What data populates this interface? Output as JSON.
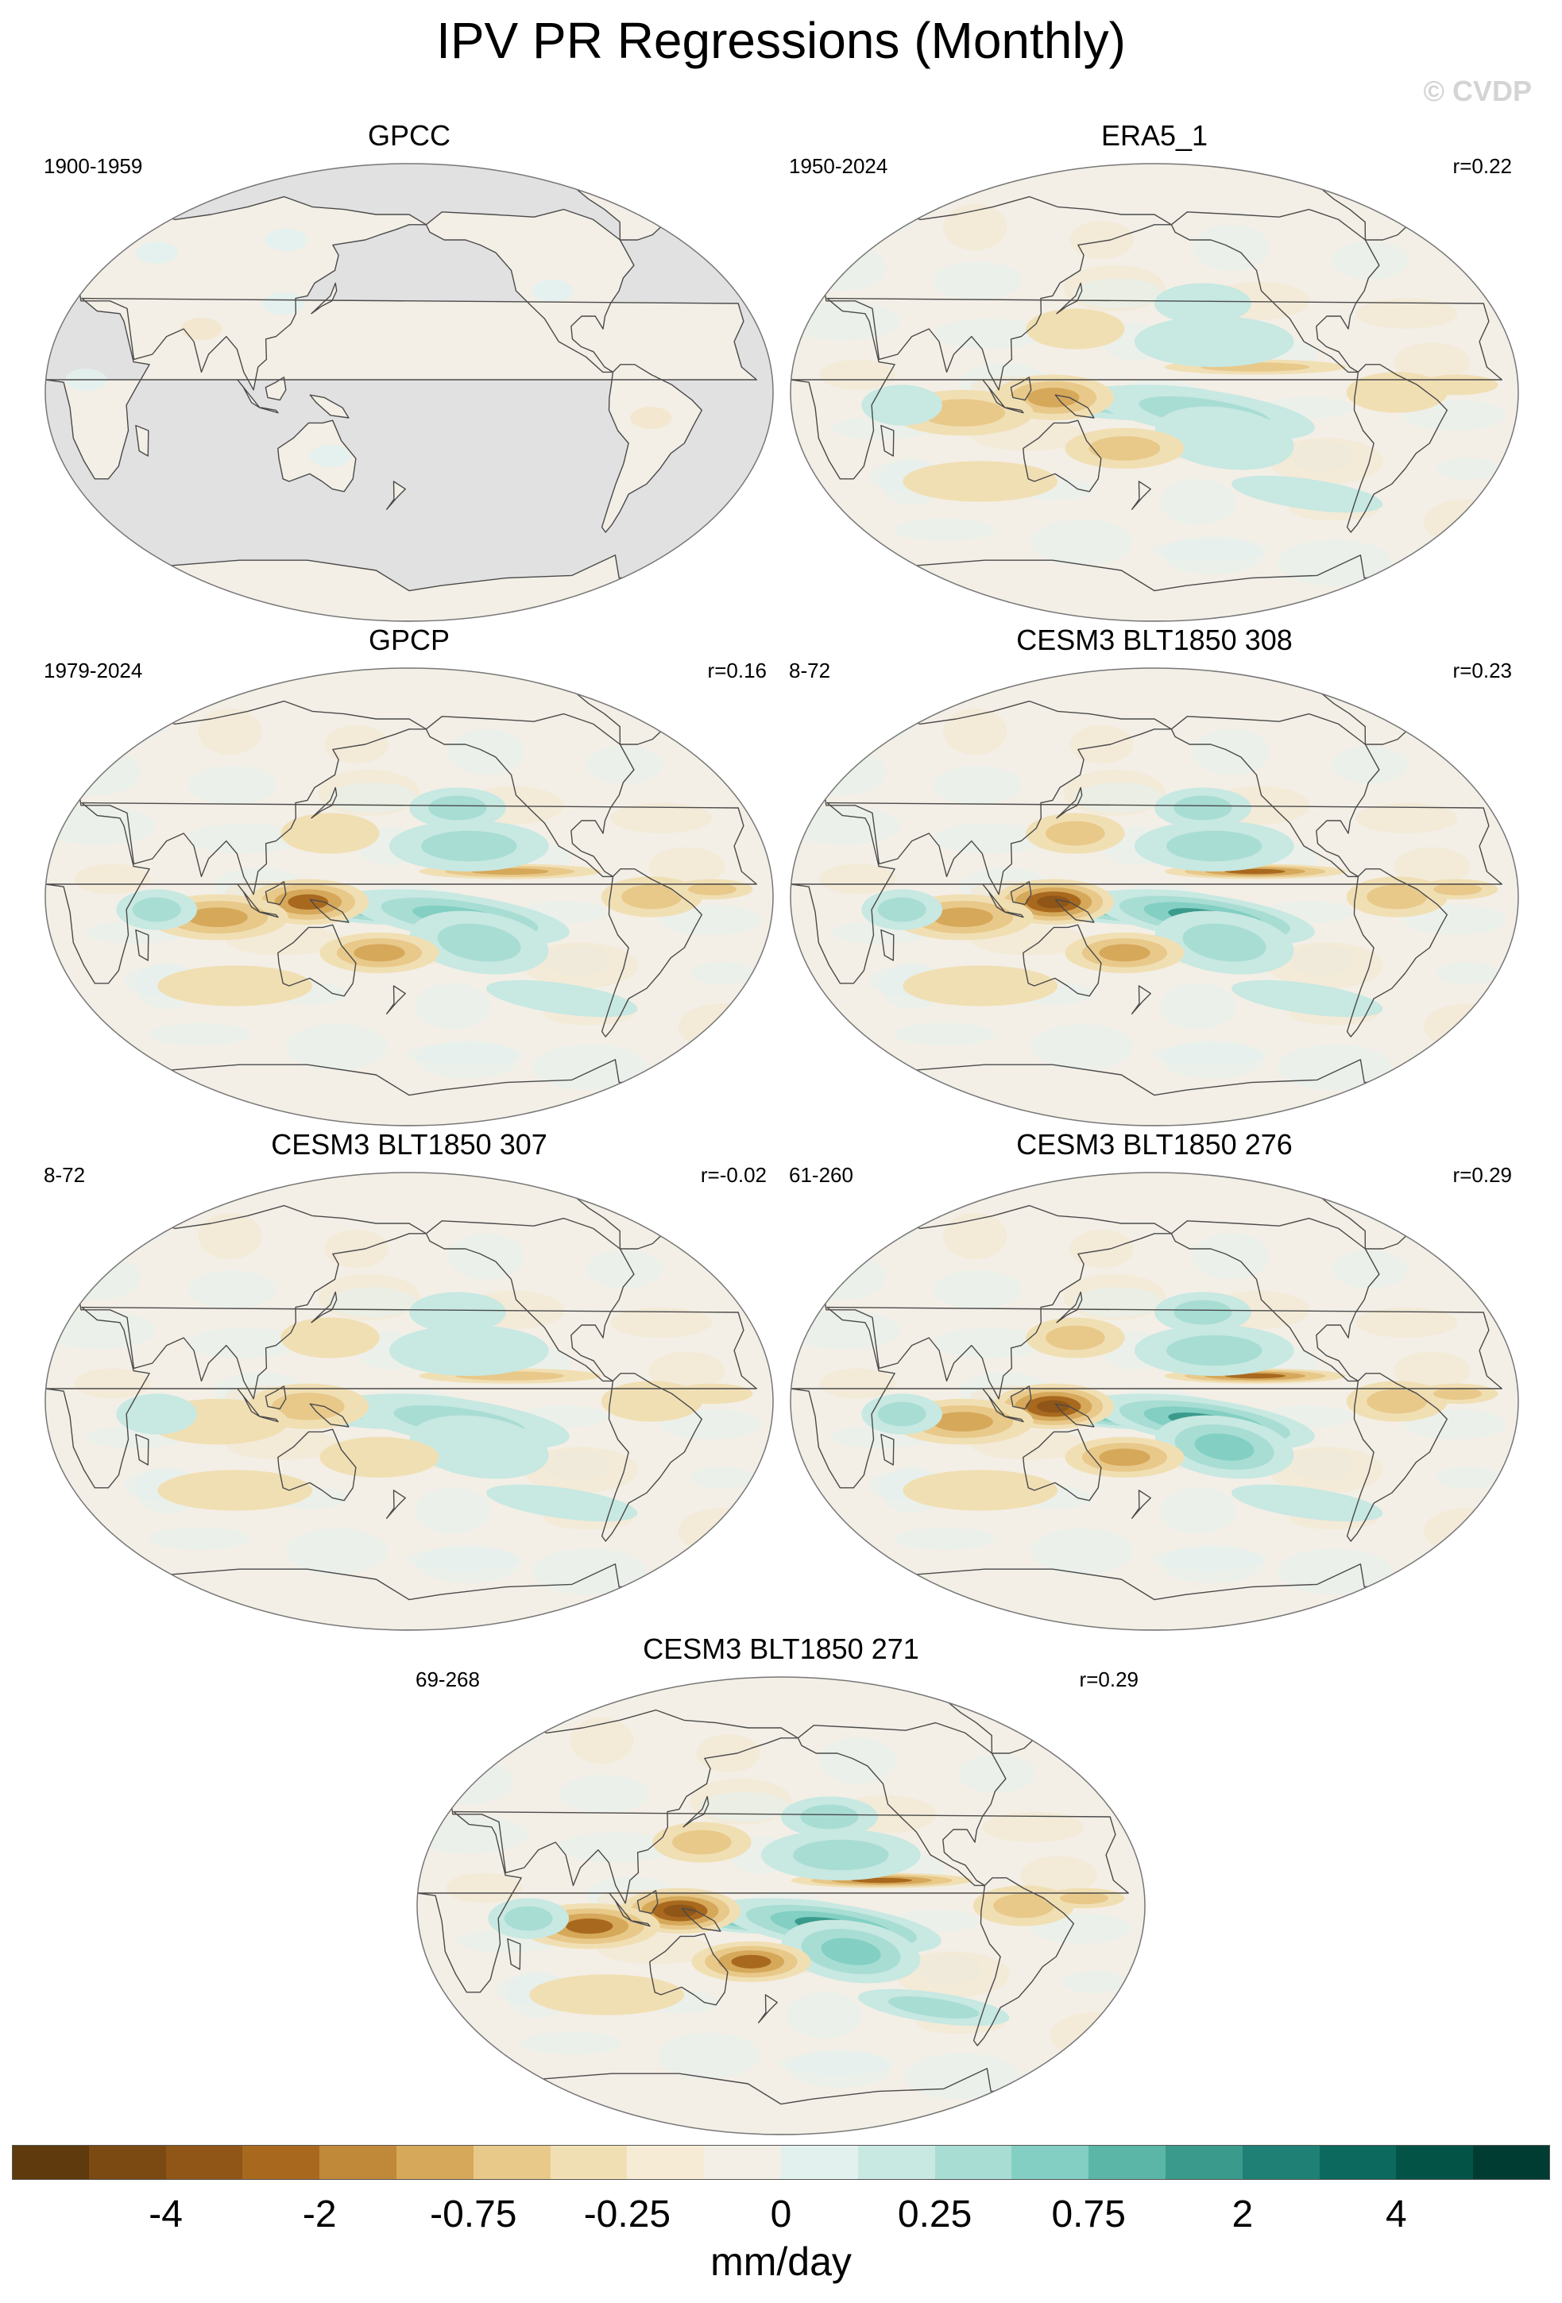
{
  "title": "IPV PR Regressions (Monthly)",
  "watermark": "© CVDP",
  "colors": {
    "ocean_grey": "#e1e1e1",
    "coast": "#4a4a4a",
    "neutral_fill": "#f3efe6",
    "light_teal": "#e3f1ee",
    "light_tan": "#f3e6cc"
  },
  "panels": [
    {
      "name": "GPCC",
      "period": "1900-1959",
      "corr": "",
      "land_only": true,
      "amplitude": 0.15
    },
    {
      "name": "ERA5_1",
      "period": "1950-2024",
      "corr": "r=0.22",
      "land_only": false,
      "amplitude": 0.55
    },
    {
      "name": "GPCP",
      "period": "1979-2024",
      "corr": "r=0.16",
      "land_only": false,
      "amplitude": 0.8
    },
    {
      "name": "CESM3 BLT1850 308",
      "period": "8-72",
      "corr": "r=0.23",
      "land_only": false,
      "amplitude": 0.9
    },
    {
      "name": "CESM3 BLT1850 307",
      "period": "8-72",
      "corr": "r=-0.02",
      "land_only": false,
      "amplitude": 0.4
    },
    {
      "name": "CESM3 BLT1850 276",
      "period": "61-260",
      "corr": "r=0.29",
      "land_only": false,
      "amplitude": 0.95
    },
    {
      "name": "CESM3 BLT1850 271",
      "period": "69-268",
      "corr": "r=0.29",
      "land_only": false,
      "amplitude": 1.0
    }
  ],
  "colorbar": {
    "units": "mm/day",
    "tick_labels": [
      "-4",
      "-2",
      "-0.75",
      "-0.25",
      "0",
      "0.25",
      "0.75",
      "2",
      "4"
    ],
    "colors": [
      "#5e3a0c",
      "#7a4a12",
      "#8f5617",
      "#a8691f",
      "#c08839",
      "#d6a85a",
      "#e8c98a",
      "#f1dfb4",
      "#f6ecd6",
      "#f3efe6",
      "#e3f1ee",
      "#c8e8e2",
      "#a8ddd4",
      "#83cfc3",
      "#5bb6a7",
      "#3a9b8c",
      "#1f8075",
      "#0c695e",
      "#035446",
      "#013c32"
    ]
  }
}
